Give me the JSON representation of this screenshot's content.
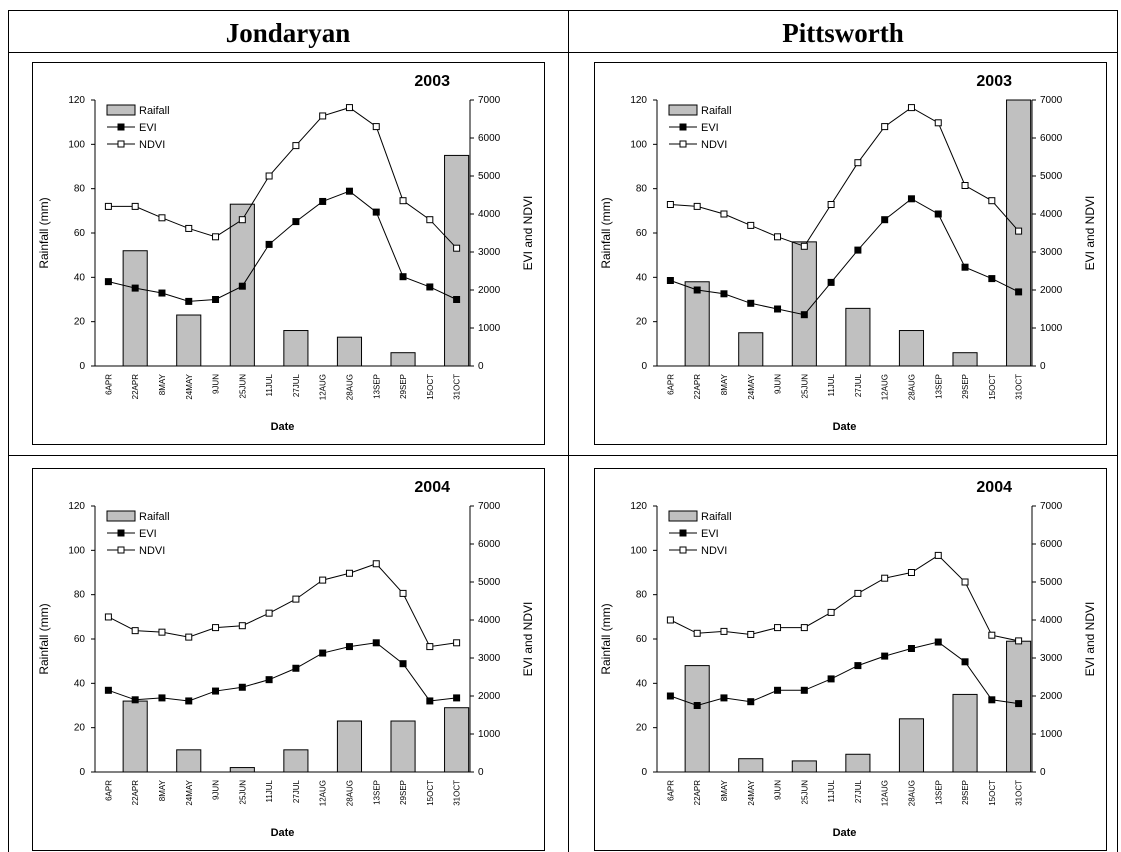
{
  "table": {
    "headers": [
      "Jondaryan",
      "Pittsworth"
    ]
  },
  "chart_data": [
    {
      "type": "bar_line",
      "title": "2003",
      "xlabel": "Date",
      "ylabel": "Rainfall (mm)",
      "y2label": "EVI and NDVI",
      "categories": [
        "6APR",
        "22APR",
        "8MAY",
        "24MAY",
        "9JUN",
        "25JUN",
        "11JUL",
        "27JUL",
        "12AUG",
        "28AUG",
        "13SEP",
        "29SEP",
        "15OCT",
        "31OCT"
      ],
      "ylim": [
        0,
        120
      ],
      "yticks": [
        0,
        20,
        40,
        60,
        80,
        100,
        120
      ],
      "y2lim": [
        0,
        7000
      ],
      "y2ticks": [
        0,
        1000,
        2000,
        3000,
        4000,
        5000,
        6000,
        7000
      ],
      "series": [
        {
          "name": "Raifall",
          "type": "bar",
          "color": "#c0c0c0",
          "values": [
            0,
            52,
            0,
            23,
            0,
            73,
            0,
            16,
            0,
            13,
            0,
            6,
            0,
            95
          ]
        },
        {
          "name": "EVI",
          "type": "line",
          "axis": "y2",
          "color": "#000000",
          "values": [
            2220,
            2050,
            1920,
            1700,
            1750,
            2100,
            3200,
            3800,
            4330,
            4600,
            4050,
            2350,
            2080,
            1750
          ]
        },
        {
          "name": "NDVI",
          "type": "line",
          "axis": "y2",
          "color": "#ffffff",
          "values": [
            4200,
            4200,
            3900,
            3620,
            3400,
            3850,
            5000,
            5800,
            6580,
            6800,
            6300,
            4350,
            3850,
            3100
          ]
        }
      ]
    },
    {
      "type": "bar_line",
      "title": "2003",
      "xlabel": "Date",
      "ylabel": "Rainfall (mm)",
      "y2label": "EVI and NDVI",
      "categories": [
        "6APR",
        "22APR",
        "8MAY",
        "24MAY",
        "9JUN",
        "25JUN",
        "11JUL",
        "27JUL",
        "12AUG",
        "28AUG",
        "13SEP",
        "29SEP",
        "15OCT",
        "31OCT"
      ],
      "ylim": [
        0,
        120
      ],
      "yticks": [
        0,
        20,
        40,
        60,
        80,
        100,
        120
      ],
      "y2lim": [
        0,
        7000
      ],
      "y2ticks": [
        0,
        1000,
        2000,
        3000,
        4000,
        5000,
        6000,
        7000
      ],
      "series": [
        {
          "name": "Raifall",
          "type": "bar",
          "color": "#c0c0c0",
          "values": [
            0,
            38,
            0,
            15,
            0,
            56,
            0,
            26,
            0,
            16,
            0,
            6,
            0,
            120
          ]
        },
        {
          "name": "EVI",
          "type": "line",
          "axis": "y2",
          "color": "#000000",
          "values": [
            2250,
            2000,
            1900,
            1650,
            1500,
            1350,
            2200,
            3050,
            3850,
            4400,
            4000,
            2600,
            2300,
            1950
          ]
        },
        {
          "name": "NDVI",
          "type": "line",
          "axis": "y2",
          "color": "#ffffff",
          "values": [
            4250,
            4200,
            4000,
            3700,
            3400,
            3150,
            4250,
            5350,
            6300,
            6800,
            6400,
            4750,
            4350,
            3550
          ]
        }
      ]
    },
    {
      "type": "bar_line",
      "title": "2004",
      "xlabel": "Date",
      "ylabel": "Rainfall (mm)",
      "y2label": "EVI and NDVI",
      "categories": [
        "6APR",
        "22APR",
        "8MAY",
        "24MAY",
        "9JUN",
        "25JUN",
        "11JUL",
        "27JUL",
        "12AUG",
        "28AUG",
        "13SEP",
        "29SEP",
        "15OCT",
        "31OCT"
      ],
      "ylim": [
        0,
        120
      ],
      "yticks": [
        0,
        20,
        40,
        60,
        80,
        100,
        120
      ],
      "y2lim": [
        0,
        7000
      ],
      "y2ticks": [
        0,
        1000,
        2000,
        3000,
        4000,
        5000,
        6000,
        7000
      ],
      "series": [
        {
          "name": "Raifall",
          "type": "bar",
          "color": "#c0c0c0",
          "values": [
            0,
            32,
            0,
            10,
            0,
            2,
            0,
            10,
            0,
            23,
            0,
            23,
            0,
            29
          ]
        },
        {
          "name": "EVI",
          "type": "line",
          "axis": "y2",
          "color": "#000000",
          "values": [
            2150,
            1900,
            1950,
            1870,
            2130,
            2230,
            2430,
            2730,
            3130,
            3300,
            3400,
            2850,
            1870,
            1950
          ]
        },
        {
          "name": "NDVI",
          "type": "line",
          "axis": "y2",
          "color": "#ffffff",
          "values": [
            4080,
            3720,
            3680,
            3550,
            3800,
            3850,
            4180,
            4550,
            5050,
            5230,
            5480,
            4700,
            3300,
            3400
          ]
        }
      ]
    },
    {
      "type": "bar_line",
      "title": "2004",
      "xlabel": "Date",
      "ylabel": "Rainfall (mm)",
      "y2label": "EVI and NDVI",
      "categories": [
        "6APR",
        "22APR",
        "8MAY",
        "24MAY",
        "9JUN",
        "25JUN",
        "11JUL",
        "27JUL",
        "12AUG",
        "28AUG",
        "13SEP",
        "29SEP",
        "15OCT",
        "31OCT"
      ],
      "ylim": [
        0,
        120
      ],
      "yticks": [
        0,
        20,
        40,
        60,
        80,
        100,
        120
      ],
      "y2lim": [
        0,
        7000
      ],
      "y2ticks": [
        0,
        1000,
        2000,
        3000,
        4000,
        5000,
        6000,
        7000
      ],
      "series": [
        {
          "name": "Raifall",
          "type": "bar",
          "color": "#c0c0c0",
          "values": [
            0,
            48,
            0,
            6,
            0,
            5,
            0,
            8,
            0,
            24,
            0,
            35,
            0,
            59
          ]
        },
        {
          "name": "EVI",
          "type": "line",
          "axis": "y2",
          "color": "#000000",
          "values": [
            2000,
            1750,
            1950,
            1850,
            2150,
            2150,
            2450,
            2800,
            3050,
            3250,
            3420,
            2900,
            1900,
            1800
          ]
        },
        {
          "name": "NDVI",
          "type": "line",
          "axis": "y2",
          "color": "#ffffff",
          "values": [
            4000,
            3650,
            3700,
            3620,
            3800,
            3800,
            4200,
            4700,
            5100,
            5250,
            5700,
            5000,
            3600,
            3450
          ]
        }
      ]
    }
  ]
}
